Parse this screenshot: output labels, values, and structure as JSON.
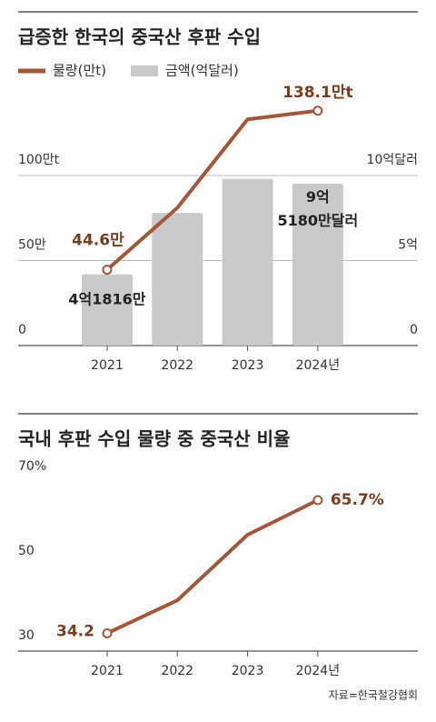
{
  "chart_data": [
    {
      "type": "bar-line",
      "title": "급증한 한국의 중국산 후판 수입",
      "categories": [
        "2021",
        "2022",
        "2023",
        "2024년"
      ],
      "series": [
        {
          "name": "물량(만t)",
          "type": "line",
          "color": "#a0573a",
          "values": [
            44.6,
            81,
            133,
            138.1
          ],
          "value_labels": [
            "44.6만",
            null,
            null,
            "138.1만t"
          ]
        },
        {
          "name": "금액(억달러)",
          "type": "bar",
          "axis": "y2",
          "color": "#c9c9c9",
          "values": [
            4.1816,
            7.8,
            9.8,
            9.518
          ],
          "value_labels": [
            "4억1816만",
            null,
            null,
            "9억\n5180만달러"
          ]
        }
      ],
      "ylim": [
        0,
        150
      ],
      "yticks": [
        0,
        {
          "value": 50,
          "label": "50만"
        },
        {
          "value": 100,
          "label": "100만t"
        }
      ],
      "y2lim": [
        0,
        15
      ],
      "y2ticks": [
        0,
        {
          "value": 5,
          "label": "5억"
        },
        {
          "value": 10,
          "label": "10억달러"
        }
      ],
      "grid": true
    },
    {
      "type": "line",
      "title": "국내 후판 수입 물량 중 중국산 비율",
      "categories": [
        "2021",
        "2022",
        "2023",
        "2024년"
      ],
      "series": [
        {
          "name": null,
          "color": "#a0573a",
          "values": [
            34.2,
            42,
            57.5,
            65.7
          ],
          "value_labels": [
            "34.2",
            null,
            null,
            "65.7%"
          ]
        }
      ],
      "ylim": [
        30,
        70
      ],
      "yticks": [
        30,
        50,
        {
          "value": 70,
          "label": "70%"
        }
      ],
      "grid": false
    }
  ],
  "source": "자료=한국철강협회"
}
